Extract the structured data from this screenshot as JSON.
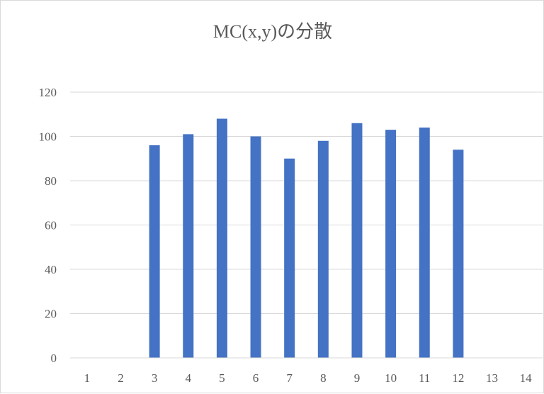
{
  "chart_data": {
    "type": "bar",
    "title": "MC(x,y)の分散",
    "xlabel": "",
    "ylabel": "",
    "categories": [
      "1",
      "2",
      "3",
      "4",
      "5",
      "6",
      "7",
      "8",
      "9",
      "10",
      "11",
      "12",
      "13",
      "14"
    ],
    "values": [
      0,
      0,
      96,
      101,
      108,
      100,
      90,
      98,
      106,
      103,
      104,
      94,
      0,
      0
    ],
    "ylim": [
      0,
      120
    ],
    "yticks": [
      0,
      20,
      40,
      60,
      80,
      100,
      120
    ],
    "grid": true,
    "legend": "none",
    "bar_color": "#4472c4"
  }
}
